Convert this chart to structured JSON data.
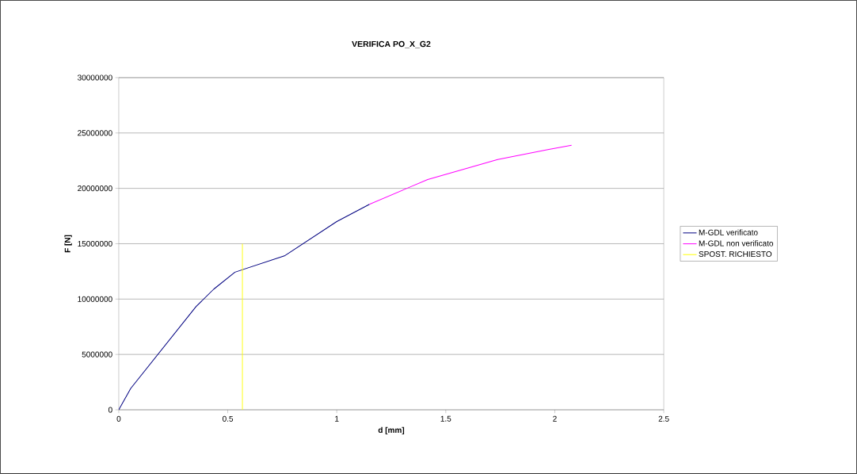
{
  "chart_data": {
    "type": "line",
    "title": "VERIFICA PO_X_G2",
    "xlabel": "d [mm]",
    "ylabel": "F [N]",
    "xlim": [
      0,
      2.5
    ],
    "xticks": [
      0,
      0.5,
      1,
      1.5,
      2,
      2.5
    ],
    "ylim": [
      0,
      30000000
    ],
    "yticks": [
      0,
      5000000,
      10000000,
      15000000,
      20000000,
      25000000,
      30000000
    ],
    "grid": "y",
    "legend": "right",
    "marker": "none",
    "line_style": "solid",
    "series": [
      {
        "name": "M-GDL verificato",
        "color": "#000080",
        "x": [
          0,
          0.055,
          0.355,
          0.436,
          0.533,
          0.76,
          1.0,
          1.15
        ],
        "values": [
          0,
          1930000,
          9330000,
          10900000,
          12430000,
          13900000,
          17000000,
          18560000
        ]
      },
      {
        "name": "M-GDL non verificato",
        "color": "#ff00ff",
        "x": [
          1.15,
          1.33,
          1.417,
          1.738,
          1.968,
          2.077
        ],
        "values": [
          18560000,
          20070000,
          20800000,
          22600000,
          23500000,
          23900000
        ]
      },
      {
        "name": "SPOST. RICHIESTO",
        "color": "#ffff00",
        "x": [
          0.567,
          0.567
        ],
        "values": [
          0,
          15000000
        ]
      }
    ]
  }
}
